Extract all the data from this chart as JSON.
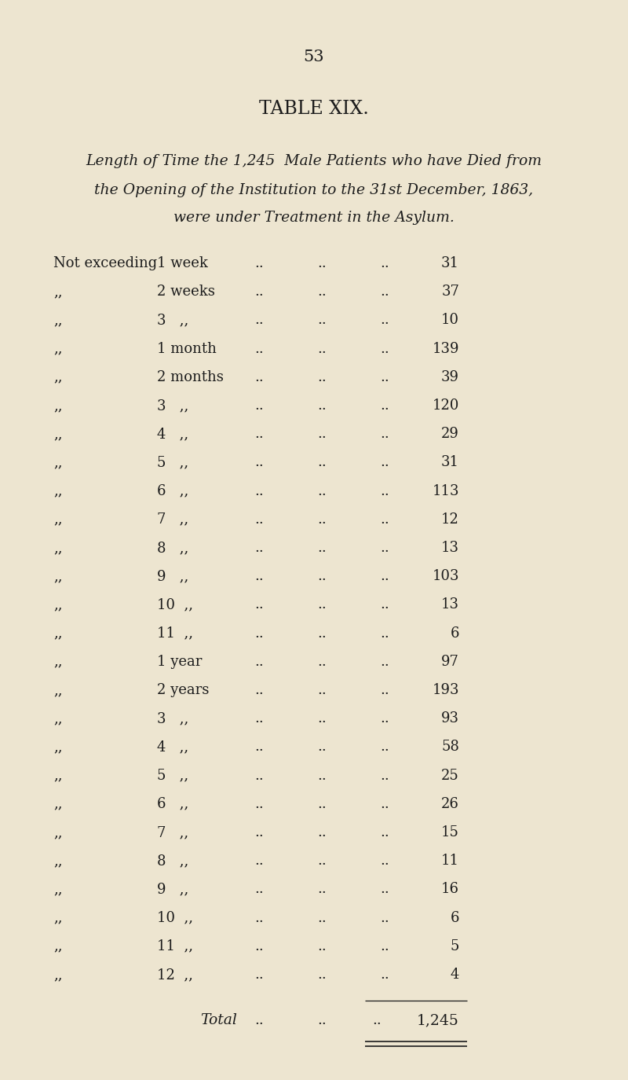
{
  "page_number": "53",
  "title": "TABLE XIX.",
  "subtitle_lines": [
    "Length of Time the 1,245  Male Patients who have Died from",
    "the Opening of the Institution to the 31st December, 1863,",
    "were under Treatment in the Asylum."
  ],
  "rows": [
    {
      "col1": "Not exceeding",
      "col2": "1 week",
      "value": "31"
    },
    {
      "col1": ",,",
      "col2": "2 weeks",
      "value": "37"
    },
    {
      "col1": ",,",
      "col2": "3   ,,",
      "value": "10"
    },
    {
      "col1": ",,",
      "col2": "1 month",
      "value": "139"
    },
    {
      "col1": ",,",
      "col2": "2 months",
      "value": "39"
    },
    {
      "col1": ",,",
      "col2": "3   ,,",
      "value": "120"
    },
    {
      "col1": ",,",
      "col2": "4   ,,",
      "value": "29"
    },
    {
      "col1": ",,",
      "col2": "5   ,,",
      "value": "31"
    },
    {
      "col1": ",,",
      "col2": "6   ,,",
      "value": "113"
    },
    {
      "col1": ",,",
      "col2": "7   ,,",
      "value": "12"
    },
    {
      "col1": ",,",
      "col2": "8   ,,",
      "value": "13"
    },
    {
      "col1": ",,",
      "col2": "9   ,,",
      "value": "103"
    },
    {
      "col1": ",,",
      "col2": "10  ,,",
      "value": "13"
    },
    {
      "col1": ",,",
      "col2": "11  ,,",
      "value": "6"
    },
    {
      "col1": ",,",
      "col2": "1 year",
      "value": "97"
    },
    {
      "col1": ",,",
      "col2": "2 years",
      "value": "193"
    },
    {
      "col1": ",,",
      "col2": "3   ,,",
      "value": "93"
    },
    {
      "col1": ",,",
      "col2": "4   ,,",
      "value": "58"
    },
    {
      "col1": ",,",
      "col2": "5   ,,",
      "value": "25"
    },
    {
      "col1": ",,",
      "col2": "6   ,,",
      "value": "26"
    },
    {
      "col1": ",,",
      "col2": "7   ,,",
      "value": "15"
    },
    {
      "col1": ",,",
      "col2": "8   ,,",
      "value": "11"
    },
    {
      "col1": ",,",
      "col2": "9   ,,",
      "value": "16"
    },
    {
      "col1": ",,",
      "col2": "10  ,,",
      "value": "6"
    },
    {
      "col1": ",,",
      "col2": "11  ,,",
      "value": "5"
    },
    {
      "col1": ",,",
      "col2": "12  ,,",
      "value": "4"
    }
  ],
  "total_label": "Total",
  "total_value": "1,245",
  "bg_color": "#ede5d0",
  "text_color": "#1c1c1c",
  "page_num_fontsize": 15,
  "title_fontsize": 17,
  "subtitle_fontsize": 13.5,
  "row_fontsize": 13,
  "total_fontsize": 13.5,
  "dots_text": "..",
  "fig_width": 8.0,
  "fig_height": 13.74,
  "fig_dpi": 100
}
